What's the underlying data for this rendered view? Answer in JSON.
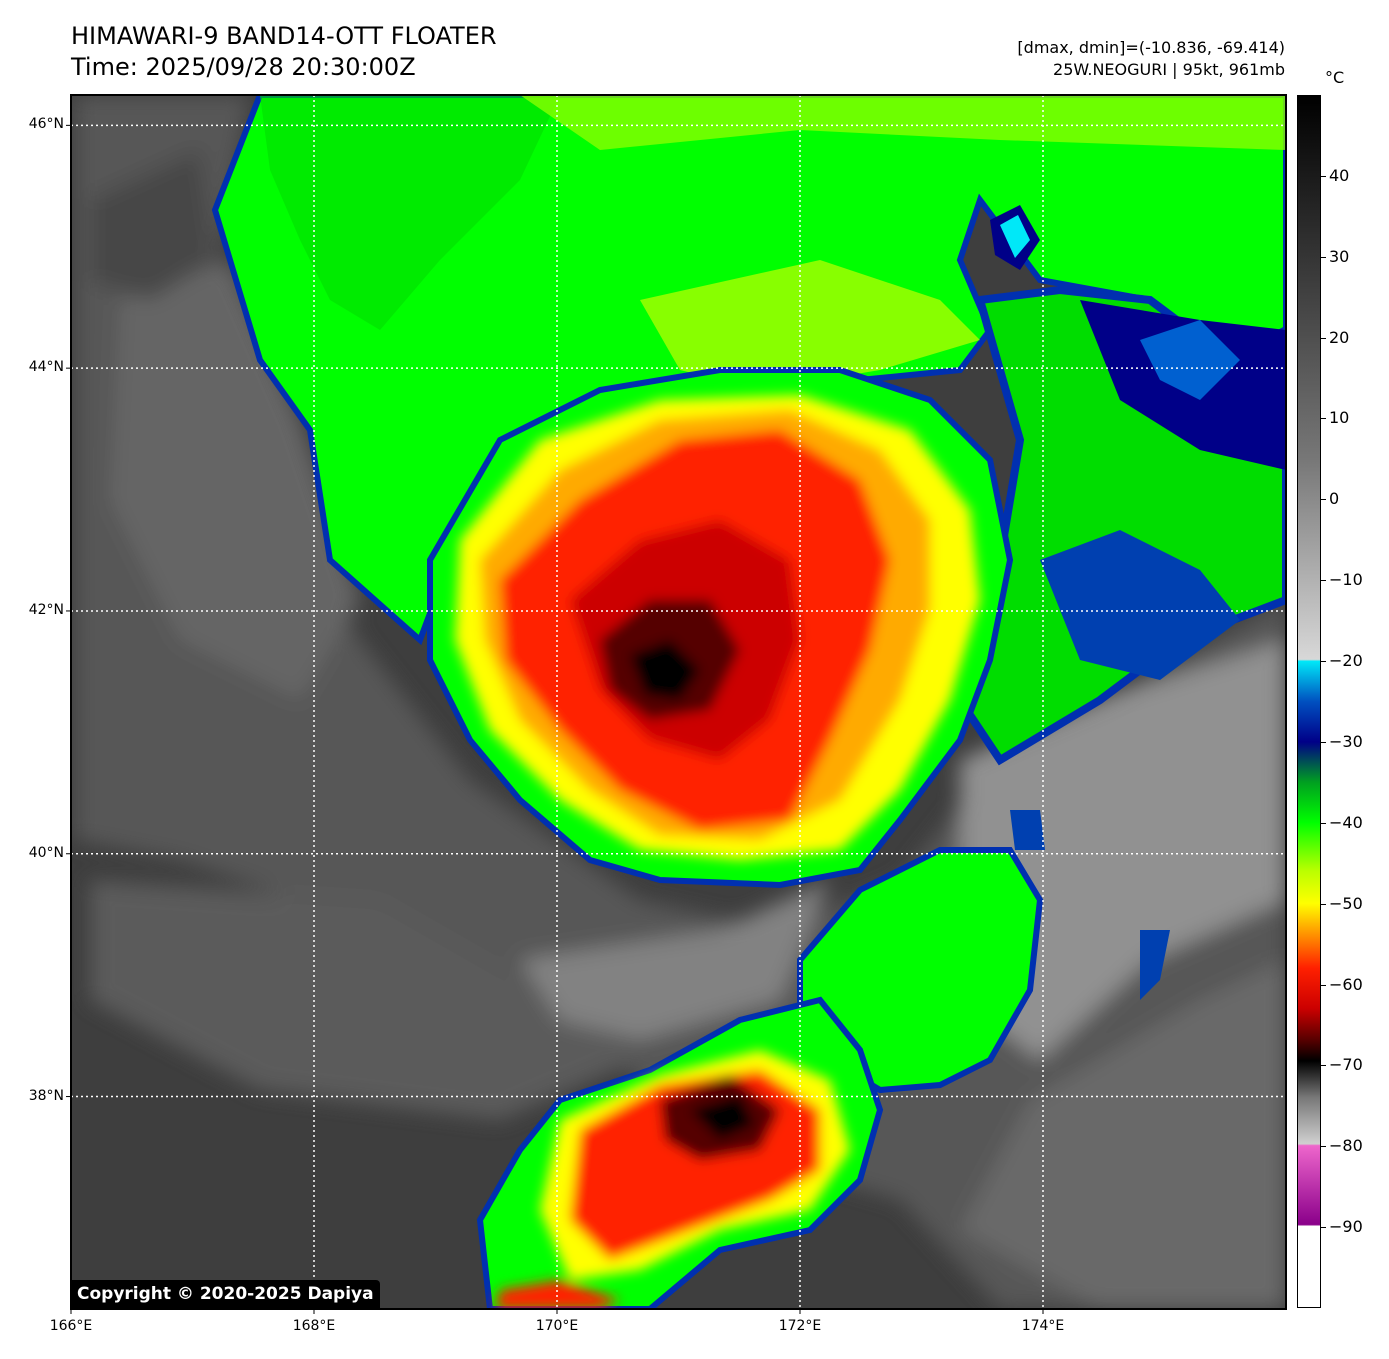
{
  "title": {
    "line1": "HIMAWARI-9 BAND14-OTT FLOATER",
    "line2": "Time: 2025/09/28 20:30:00Z"
  },
  "stats": {
    "dmax_dmin": "[dmax, dmin]=(-10.836, -69.414)",
    "storm": "25W.NEOGURI | 95kt, 961mb"
  },
  "map": {
    "lat_labels": [
      "46°N",
      "44°N",
      "42°N",
      "40°N",
      "38°N"
    ],
    "lon_labels": [
      "166°E",
      "168°E",
      "170°E",
      "172°E",
      "174°E"
    ],
    "lat_values": [
      46,
      44,
      42,
      40,
      38
    ],
    "lon_values": [
      166,
      168,
      170,
      172,
      174
    ],
    "lat_range": [
      36.25,
      46.25
    ],
    "lon_range": [
      166,
      176
    ],
    "gridlines": true
  },
  "colorbar": {
    "unit": "°C",
    "tick_labels": [
      "40",
      "30",
      "20",
      "10",
      "0",
      "−10",
      "−20",
      "−30",
      "−40",
      "−50",
      "−60",
      "−70",
      "−80",
      "−90"
    ],
    "tick_values": [
      40,
      30,
      20,
      10,
      0,
      -10,
      -20,
      -30,
      -40,
      -50,
      -60,
      -70,
      -80,
      -90
    ],
    "range": [
      -100,
      50
    ],
    "stops": [
      {
        "t": 50,
        "c": "#000000"
      },
      {
        "t": 5,
        "c": "#777777"
      },
      {
        "t": -19.8,
        "c": "#d8d8d8"
      },
      {
        "t": -20,
        "c": "#00e8f8"
      },
      {
        "t": -25,
        "c": "#0050c0"
      },
      {
        "t": -30,
        "c": "#000088"
      },
      {
        "t": -35,
        "c": "#00a020"
      },
      {
        "t": -40,
        "c": "#00ff00"
      },
      {
        "t": -46,
        "c": "#bbff00"
      },
      {
        "t": -50,
        "c": "#ffff00"
      },
      {
        "t": -53,
        "c": "#ffaa00"
      },
      {
        "t": -58,
        "c": "#ff2000"
      },
      {
        "t": -63,
        "c": "#cc0000"
      },
      {
        "t": -67,
        "c": "#550000"
      },
      {
        "t": -69.5,
        "c": "#000000"
      },
      {
        "t": -74,
        "c": "#777777"
      },
      {
        "t": -79.8,
        "c": "#d0d0d0"
      },
      {
        "t": -80,
        "c": "#ee66cc"
      },
      {
        "t": -89.8,
        "c": "#8a008a"
      },
      {
        "t": -90,
        "c": "#ffffff"
      },
      {
        "t": -100,
        "c": "#ffffff"
      }
    ]
  },
  "copyright": "Copyright © 2020-2025 Dapiya"
}
